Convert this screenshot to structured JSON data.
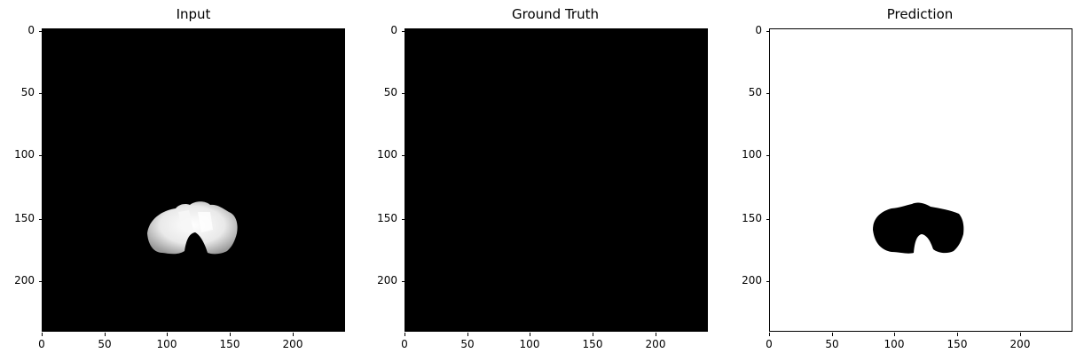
{
  "panels": [
    {
      "title": "Input",
      "bg": "#000000"
    },
    {
      "title": "Ground Truth",
      "bg": "#000000"
    },
    {
      "title": "Prediction",
      "bg": "#ffffff"
    }
  ],
  "axes": {
    "y_ticks": [
      "0",
      "50",
      "100",
      "150",
      "200"
    ],
    "x_ticks": [
      "0",
      "50",
      "100",
      "150",
      "200"
    ]
  }
}
